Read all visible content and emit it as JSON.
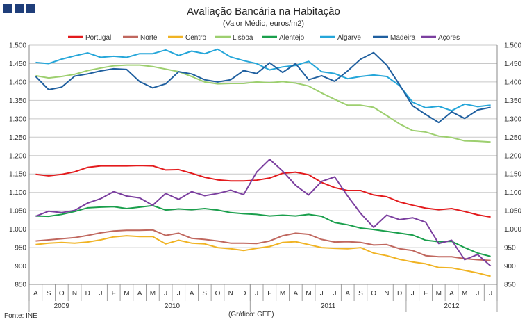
{
  "header": {
    "title": "Avaliação Bancária na Habitação",
    "subtitle": "(Valor Médio, euros/m2)"
  },
  "footer": {
    "source": "Fonte: INE",
    "credit": "(Gráfico: GEE)"
  },
  "logo": {
    "squares": 3,
    "color": "#1f3e7a"
  },
  "chart_data": {
    "type": "line",
    "title": "Avaliação Bancária na Habitação",
    "subtitle": "(Valor Médio, euros/m2)",
    "ylim": [
      850,
      1500
    ],
    "yticks": [
      850,
      900,
      950,
      1000,
      1050,
      1100,
      1150,
      1200,
      1250,
      1300,
      1350,
      1400,
      1450,
      1500
    ],
    "ytick_labels": [
      "850",
      "900",
      "950",
      "1.000",
      "1.050",
      "1.100",
      "1.150",
      "1.200",
      "1.250",
      "1.300",
      "1.350",
      "1.400",
      "1.450",
      "1.500"
    ],
    "y_axis_both_sides": true,
    "grid": "horizontal",
    "legend_position": "top",
    "months": [
      "A",
      "S",
      "O",
      "N",
      "D",
      "J",
      "F",
      "M",
      "A",
      "M",
      "J",
      "J",
      "A",
      "S",
      "O",
      "N",
      "D",
      "J",
      "F",
      "M",
      "A",
      "M",
      "J",
      "J",
      "A",
      "S",
      "O",
      "N",
      "D",
      "J",
      "F",
      "M",
      "A",
      "M",
      "J",
      "J"
    ],
    "year_groups": [
      {
        "label": "2009",
        "count": 5
      },
      {
        "label": "2010",
        "count": 12
      },
      {
        "label": "2011",
        "count": 12
      },
      {
        "label": "2012",
        "count": 7
      }
    ],
    "series": [
      {
        "name": "Portugal",
        "color": "#e31a1c",
        "values": [
          1149,
          1145,
          1149,
          1156,
          1168,
          1172,
          1172,
          1172,
          1173,
          1172,
          1161,
          1162,
          1152,
          1141,
          1134,
          1131,
          1131,
          1133,
          1139,
          1152,
          1155,
          1148,
          1127,
          1113,
          1105,
          1105,
          1093,
          1088,
          1074,
          1065,
          1057,
          1053,
          1056,
          1048,
          1039,
          1033
        ]
      },
      {
        "name": "Norte",
        "color": "#c0675e",
        "values": [
          968,
          971,
          974,
          977,
          983,
          990,
          995,
          997,
          997,
          998,
          983,
          989,
          975,
          972,
          968,
          962,
          962,
          961,
          968,
          982,
          989,
          986,
          972,
          965,
          966,
          964,
          957,
          958,
          947,
          942,
          928,
          925,
          925,
          920,
          917,
          915
        ]
      },
      {
        "name": "Centro",
        "color": "#f0b323",
        "values": [
          958,
          962,
          964,
          962,
          965,
          971,
          979,
          982,
          980,
          980,
          960,
          970,
          962,
          960,
          950,
          947,
          942,
          948,
          953,
          964,
          966,
          958,
          950,
          948,
          947,
          950,
          935,
          928,
          918,
          911,
          906,
          896,
          895,
          888,
          881,
          872
        ]
      },
      {
        "name": "Lisboa",
        "color": "#9dcf6f",
        "values": [
          1417,
          1411,
          1415,
          1421,
          1431,
          1438,
          1444,
          1446,
          1446,
          1442,
          1435,
          1428,
          1415,
          1400,
          1395,
          1396,
          1396,
          1400,
          1398,
          1401,
          1397,
          1389,
          1370,
          1353,
          1337,
          1337,
          1331,
          1309,
          1286,
          1268,
          1264,
          1253,
          1249,
          1240,
          1239,
          1237
        ]
      },
      {
        "name": "Alentejo",
        "color": "#1a9f4c",
        "values": [
          1036,
          1035,
          1040,
          1048,
          1058,
          1060,
          1061,
          1056,
          1060,
          1064,
          1052,
          1055,
          1053,
          1056,
          1052,
          1045,
          1042,
          1040,
          1036,
          1038,
          1036,
          1040,
          1035,
          1018,
          1012,
          1003,
          999,
          994,
          989,
          984,
          970,
          966,
          967,
          950,
          935,
          926
        ]
      },
      {
        "name": "Algarve",
        "color": "#25a6d9",
        "values": [
          1453,
          1450,
          1462,
          1471,
          1479,
          1467,
          1470,
          1467,
          1477,
          1477,
          1487,
          1472,
          1484,
          1477,
          1489,
          1468,
          1458,
          1450,
          1433,
          1441,
          1445,
          1456,
          1428,
          1423,
          1409,
          1415,
          1419,
          1415,
          1390,
          1345,
          1330,
          1334,
          1322,
          1340,
          1333,
          1337
        ]
      },
      {
        "name": "Madeira",
        "color": "#1f5f9f",
        "values": [
          1415,
          1379,
          1386,
          1416,
          1422,
          1430,
          1436,
          1434,
          1401,
          1384,
          1395,
          1428,
          1422,
          1406,
          1400,
          1406,
          1431,
          1423,
          1452,
          1426,
          1450,
          1406,
          1417,
          1402,
          1430,
          1462,
          1480,
          1446,
          1392,
          1335,
          1312,
          1290,
          1319,
          1301,
          1324,
          1331
        ]
      },
      {
        "name": "Açores",
        "color": "#7b3f9f",
        "values": [
          1035,
          1049,
          1045,
          1051,
          1071,
          1083,
          1102,
          1090,
          1085,
          1065,
          1097,
          1081,
          1102,
          1091,
          1097,
          1106,
          1094,
          1155,
          1190,
          1158,
          1119,
          1093,
          1130,
          1142,
          1090,
          1043,
          1005,
          1038,
          1026,
          1031,
          1019,
          961,
          970,
          917,
          931,
          900
        ]
      }
    ]
  }
}
